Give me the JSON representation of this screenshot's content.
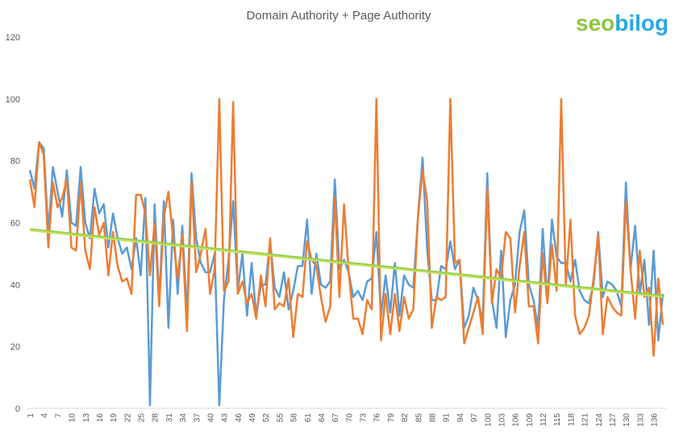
{
  "chart_data": {
    "type": "line",
    "title": "Domain Authority + Page Authority",
    "logo": {
      "first": "seo",
      "second": "bilog"
    },
    "categories": [
      1,
      null,
      null,
      4,
      null,
      null,
      7,
      null,
      null,
      10,
      null,
      null,
      13,
      null,
      null,
      16,
      null,
      null,
      19,
      null,
      null,
      22,
      null,
      null,
      25,
      null,
      null,
      28,
      null,
      null,
      31,
      null,
      null,
      34,
      null,
      null,
      37,
      null,
      null,
      40,
      null,
      null,
      43,
      null,
      null,
      46,
      null,
      null,
      49,
      null,
      null,
      52,
      null,
      null,
      55,
      null,
      null,
      58,
      null,
      null,
      61,
      null,
      null,
      64,
      null,
      null,
      67,
      null,
      null,
      70,
      null,
      null,
      73,
      null,
      null,
      76,
      null,
      null,
      79,
      null,
      null,
      82,
      null,
      null,
      85,
      null,
      null,
      88,
      null,
      null,
      91,
      null,
      null,
      94,
      null,
      null,
      97,
      null,
      null,
      100,
      null,
      null,
      103,
      null,
      null,
      106,
      null,
      null,
      109,
      null,
      null,
      112,
      null,
      null,
      115,
      null,
      null,
      118,
      null,
      null,
      121,
      null,
      null,
      124,
      null,
      null,
      127,
      null,
      null,
      130,
      null,
      null,
      133,
      null,
      null,
      136,
      null,
      null
    ],
    "series": [
      {
        "color": "#5b9bd5",
        "values": [
          77,
          71,
          86,
          84,
          57,
          78,
          70,
          62,
          77,
          60,
          59,
          78,
          60,
          55,
          71,
          63,
          66,
          52,
          63,
          55,
          50,
          52,
          45,
          55,
          43,
          68,
          1,
          66,
          35,
          67,
          26,
          61,
          37,
          59,
          30,
          76,
          55,
          47,
          44,
          44,
          50,
          1,
          35,
          48,
          67,
          38,
          50,
          30,
          47,
          30,
          40,
          40,
          54,
          39,
          36,
          44,
          32,
          38,
          46,
          46,
          61,
          37,
          50,
          40,
          39,
          41,
          74,
          45,
          48,
          44,
          36,
          38,
          35,
          41,
          42,
          57,
          30,
          43,
          31,
          47,
          30,
          43,
          40,
          39,
          62,
          81,
          51,
          35,
          35,
          46,
          45,
          54,
          45,
          48,
          26,
          30,
          39,
          35,
          28,
          76,
          35,
          26,
          51,
          23,
          35,
          40,
          57,
          64,
          40,
          35,
          26,
          58,
          35,
          61,
          49,
          47,
          47,
          41,
          48,
          38,
          35,
          34,
          40,
          57,
          36,
          41,
          40,
          38,
          33,
          73,
          45,
          59,
          37,
          48,
          27,
          51,
          22,
          37
        ]
      },
      {
        "color": "#ed7d31",
        "values": [
          74,
          65,
          86,
          82,
          52,
          73,
          65,
          68,
          74,
          52,
          51,
          73,
          51,
          45,
          65,
          56,
          60,
          43,
          57,
          46,
          41,
          42,
          37,
          69,
          69,
          63,
          43,
          60,
          33,
          62,
          70,
          55,
          42,
          56,
          25,
          73,
          44,
          50,
          58,
          37,
          45,
          100,
          38,
          41,
          99,
          37,
          41,
          34,
          37,
          29,
          43,
          33,
          55,
          32,
          34,
          33,
          42,
          23,
          37,
          36,
          54,
          48,
          46,
          36,
          28,
          33,
          68,
          36,
          66,
          44,
          29,
          29,
          24,
          35,
          32,
          100,
          22,
          37,
          24,
          37,
          25,
          36,
          29,
          32,
          62,
          77,
          67,
          26,
          36,
          35,
          36,
          100,
          47,
          48,
          21,
          26,
          31,
          36,
          24,
          71,
          34,
          45,
          42,
          57,
          55,
          31,
          46,
          57,
          33,
          33,
          21,
          50,
          34,
          53,
          38,
          100,
          40,
          61,
          30,
          24,
          26,
          30,
          42,
          56,
          24,
          36,
          33,
          31,
          30,
          67,
          45,
          29,
          51,
          36,
          39,
          17,
          42,
          27
        ]
      }
    ],
    "trendlines": [
      {
        "color": "#92d050",
        "values": [
          58,
          36.5
        ]
      },
      {
        "color": "#c5e05a",
        "values": [
          57.5,
          36
        ]
      }
    ],
    "ylim": [
      0,
      120
    ],
    "yticks": [
      0,
      20,
      40,
      60,
      80,
      100,
      120
    ],
    "grid": false
  }
}
